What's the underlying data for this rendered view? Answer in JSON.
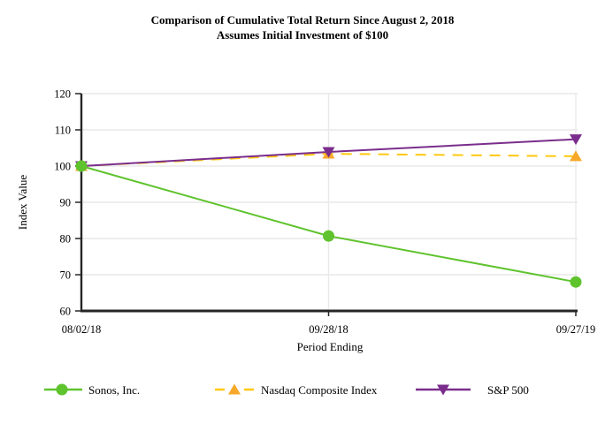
{
  "title": {
    "line1": "Comparison of Cumulative Total Return Since August 2, 2018",
    "line2": "Assumes Initial Investment of $100"
  },
  "chart_data": {
    "type": "line",
    "x_categories": [
      "08/02/18",
      "09/28/18",
      "09/27/19"
    ],
    "series": [
      {
        "name": "Sonos, Inc.",
        "values": [
          100,
          80.7,
          68.0
        ],
        "color": "#5FC32D",
        "marker": "circle",
        "marker_color": "#5FC32D",
        "line_style": "solid"
      },
      {
        "name": "Nasdaq Composite Index",
        "values": [
          100,
          103.4,
          102.7
        ],
        "color": "#FFC80F",
        "marker": "triangle-up",
        "marker_color": "#F7A828",
        "line_style": "dashed"
      },
      {
        "name": "S&P 500",
        "values": [
          100,
          103.9,
          107.4
        ],
        "color": "#7A2D8C",
        "marker": "triangle-down",
        "marker_color": "#7A2D8C",
        "line_style": "solid"
      }
    ],
    "xlabel": "Period Ending",
    "ylabel": "Index Value",
    "ylim": [
      60,
      120
    ],
    "y_ticks": [
      60,
      70,
      80,
      90,
      100,
      110,
      120
    ],
    "grid": true,
    "legend_position": "bottom"
  },
  "colors": {
    "axis": "#262626",
    "grid": "#E9E9E9",
    "text": "#000000"
  }
}
